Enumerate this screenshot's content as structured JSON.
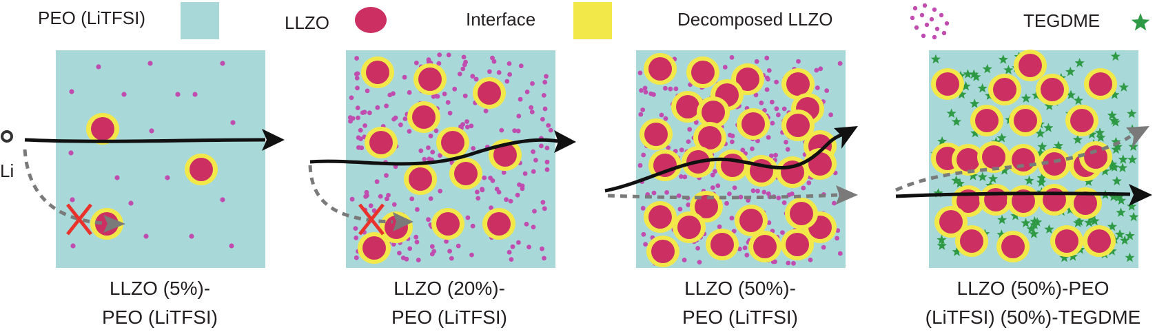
{
  "legend": {
    "peo_label": "PEO (LiTFSI)",
    "llzo_label": "LLZO",
    "interface_label": "Interface",
    "decomposed_label": "Decomposed LLZO",
    "tegdme_label": "TEGDME"
  },
  "li_label": "Li",
  "panels": [
    {
      "caption_line1": "LLZO (5%)-",
      "caption_line2": "PEO (LiTFSI)"
    },
    {
      "caption_line1": "LLZO (20%)-",
      "caption_line2": "PEO (LiTFSI)"
    },
    {
      "caption_line1": "LLZO (50%)-",
      "caption_line2": "PEO (LiTFSI)"
    },
    {
      "caption_line1": "LLZO (50%)-PEO",
      "caption_line2": "(LiTFSI) (50%)-TEGDME"
    }
  ],
  "colors": {
    "peo": "#a8d8d8",
    "llzo": "#cc2f62",
    "interface": "#f2e84a",
    "decomposed": "#c04cb0",
    "tegdme": "#2e9a45",
    "path_solid": "#111111",
    "path_dashed": "#7a7a7a",
    "blocked": "#e8322b"
  }
}
